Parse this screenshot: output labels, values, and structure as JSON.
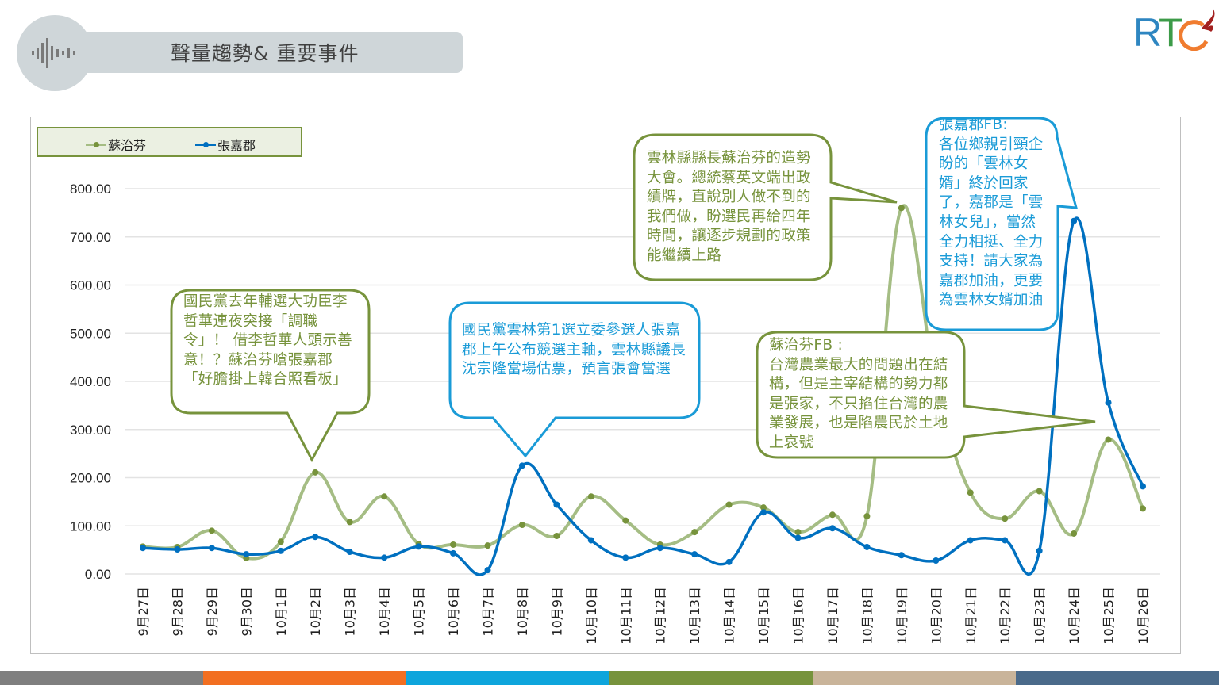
{
  "header": {
    "title": "聲量趨勢& 重要事件",
    "icon": "sound-wave-icon"
  },
  "logo": {
    "text": "RTC",
    "colors": {
      "R": "#2e86c1",
      "T": "#3c9b48",
      "C": "#f07c2f",
      "flame": "#a3201f"
    }
  },
  "chart_data": {
    "type": "line",
    "title": "",
    "xlabel": "",
    "ylabel": "",
    "ylim": [
      0,
      800
    ],
    "yticks": [
      "0.00",
      "100.00",
      "200.00",
      "300.00",
      "400.00",
      "500.00",
      "600.00",
      "700.00",
      "800.00"
    ],
    "grid": true,
    "legend_position": "top-left",
    "categories": [
      "9月27日",
      "9月28日",
      "9月29日",
      "9月30日",
      "10月1日",
      "10月2日",
      "10月3日",
      "10月4日",
      "10月5日",
      "10月6日",
      "10月7日",
      "10月8日",
      "10月9日",
      "10月10日",
      "10月11日",
      "10月12日",
      "10月13日",
      "10月14日",
      "10月15日",
      "10月16日",
      "10月17日",
      "10月18日",
      "10月19日",
      "10月20日",
      "10月21日",
      "10月22日",
      "10月23日",
      "10月24日",
      "10月25日",
      "10月26日"
    ],
    "series": [
      {
        "name": "蘇治芬",
        "color": "#a5bd84",
        "marker_color": "#77933c",
        "values": [
          57,
          56,
          90,
          33,
          67,
          211,
          108,
          161,
          62,
          61,
          59,
          102,
          79,
          161,
          111,
          61,
          87,
          144,
          138,
          87,
          123,
          120,
          760,
          390,
          169,
          115,
          172,
          84,
          279,
          136
        ]
      },
      {
        "name": "張嘉郡",
        "color": "#0070c0",
        "marker_color": "#0070c0",
        "values": [
          54,
          51,
          54,
          41,
          48,
          77,
          46,
          34,
          57,
          43,
          8,
          225,
          144,
          70,
          34,
          54,
          41,
          25,
          128,
          75,
          95,
          56,
          39,
          28,
          70,
          70,
          48,
          733,
          356,
          182
        ]
      }
    ],
    "annotations": [
      {
        "series": "蘇治芬",
        "date": "10月2日",
        "text": "國民黨去年輔選大功臣李哲華連夜突接「調職令」！ 借李哲華人頭示善意！？蘇治芬嗆張嘉郡「好膽掛上韓合照看板」"
      },
      {
        "series": "張嘉郡",
        "date": "10月8日",
        "text": "國民黨雲林第1選立委參選人張嘉郡上午公布競選主軸，雲林縣議長沈宗隆當場估票，預言張會當選"
      },
      {
        "series": "蘇治芬",
        "date": "10月19日",
        "text": "雲林縣縣長蘇治芬的造勢大會。總統蔡英文端出政績牌，直說別人做不到的我們做，盼選民再給四年時間，讓逐步規劃的政策能繼續上路"
      },
      {
        "series": "張嘉郡",
        "date": "10月24日",
        "text": "張嘉郡FB:\n各位鄉親引頸企盼的「雲林女婿」終於回家了，嘉郡是「雲林女兒」，當然全力相挺、全力支持！請大家為嘉郡加油，更要為雲林女婿加油"
      },
      {
        "series": "蘇治芬",
        "date": "10月25日",
        "text": "蘇治芬FB :\n台灣農業最大的問題出在結構，但是主宰結構的勢力都是張家，不只掐住台灣的農業發展，也是陷農民於土地上哀號"
      }
    ]
  },
  "footer": {
    "stripe_colors": [
      "#7f7f7f",
      "#f26f21",
      "#0ea5dc",
      "#77933c",
      "#c9b49a",
      "#4a6a8a"
    ]
  }
}
